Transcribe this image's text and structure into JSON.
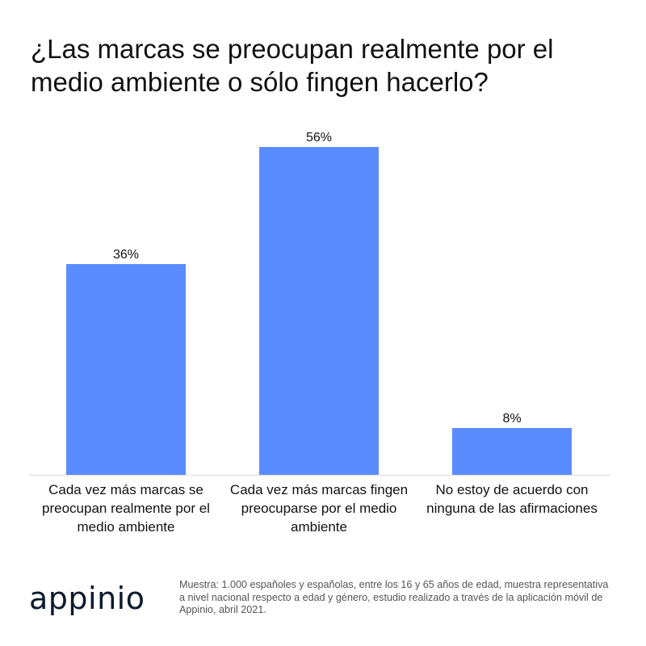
{
  "title": "¿Las marcas se preocupan realmente por el medio ambiente o sólo fingen hacerlo?",
  "brand": {
    "logo_text": "appinio"
  },
  "source_note": "Muestra: 1.000 españoles y españolas, entre los 16 y 65 años de edad, muestra representativa a nivel nacional respecto a edad y género, estudio realizado a través de la aplicación móvil de Appinio, abril 2021.",
  "colors": {
    "bar": "#5b8cff",
    "text": "#111111",
    "axis": "#dddddd"
  },
  "chart_data": {
    "type": "bar",
    "title": "¿Las marcas se preocupan realmente por el medio ambiente o sólo fingen hacerlo?",
    "categories": [
      "Cada vez más marcas se preocupan realmente por el medio ambiente",
      "Cada vez más marcas fingen preocuparse por el medio ambiente",
      "No estoy de acuerdo con ninguna de las afirmaciones"
    ],
    "values": [
      36,
      56,
      8
    ],
    "value_labels": [
      "36%",
      "56%",
      "8%"
    ],
    "unit": "%",
    "ylim": [
      0,
      56
    ],
    "grid": false,
    "legend": "none"
  }
}
